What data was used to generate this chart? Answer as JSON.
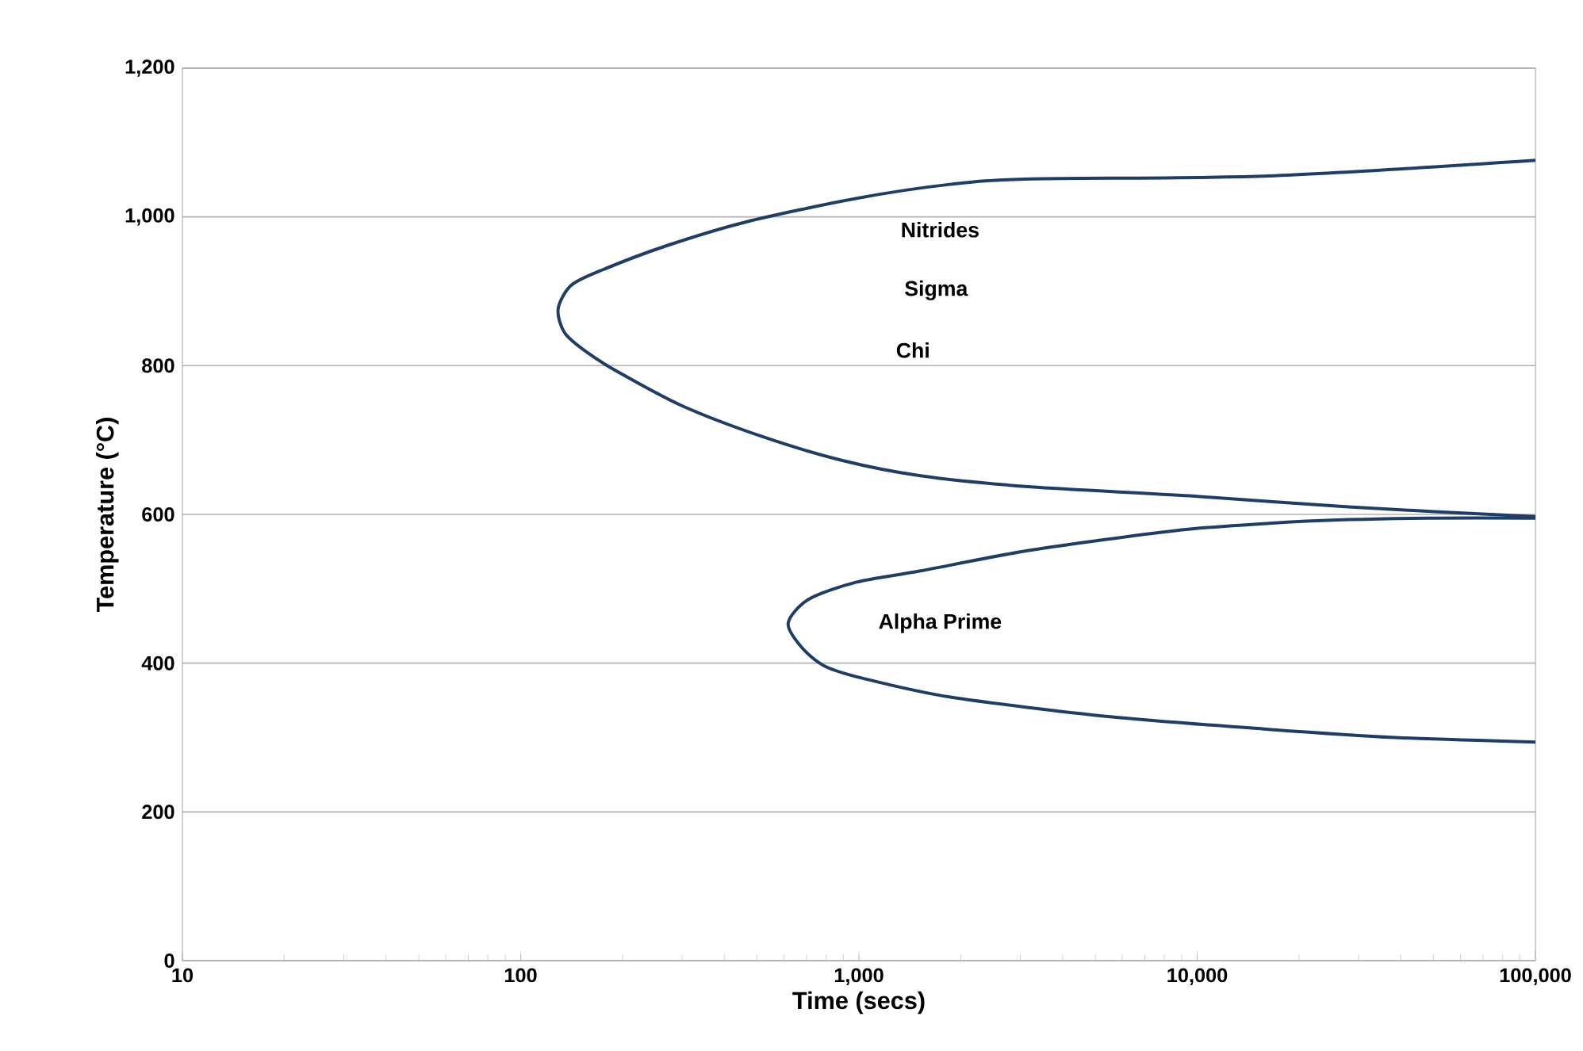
{
  "chart_data": {
    "type": "line",
    "xlabel": "Time (secs)",
    "ylabel": "Temperature (°C)",
    "log": "x",
    "grid": "y",
    "line_style": "solid",
    "marker": "none",
    "xlim": [
      10,
      100000
    ],
    "xticks": [
      10,
      100,
      {
        "value": 1000,
        "label": "1,000"
      },
      {
        "value": 10000,
        "label": "10,000"
      },
      {
        "value": 100000,
        "label": "100,000"
      }
    ],
    "ylim": [
      0,
      1200
    ],
    "yticks": [
      0,
      200,
      400,
      600,
      800,
      {
        "value": 1000,
        "label": "1,000"
      },
      {
        "value": 1200,
        "label": "1,200"
      }
    ],
    "series": [
      {
        "color": "#1f3d66",
        "x": [
          100000,
          16300,
          3230,
          1880,
          985,
          462,
          269,
          175,
          141,
          129,
          135,
          157,
          195,
          300,
          515,
          884,
          1520,
          3230,
          9500,
          28000,
          100000
        ],
        "values": [
          1076,
          1055,
          1051,
          1044,
          1025,
          993,
          961,
          929,
          908,
          876,
          844,
          818,
          791,
          746,
          705,
          673,
          652,
          637,
          625,
          610,
          597
        ]
      },
      {
        "color": "#1f3d66",
        "x": [
          100000,
          48000,
          28000,
          16300,
          8530,
          3230,
          1520,
          985,
          711,
          618,
          675,
          793,
          1040,
          1880,
          5530,
          16300,
          38600,
          100000
        ],
        "values": [
          595,
          595,
          593,
          588,
          578,
          552,
          524,
          509,
          486,
          454,
          422,
          396,
          379,
          354,
          328,
          311,
          300,
          294
        ]
      }
    ],
    "annotations": [
      "Nitrides",
      "Sigma",
      "Chi",
      "Alpha Prime"
    ]
  }
}
